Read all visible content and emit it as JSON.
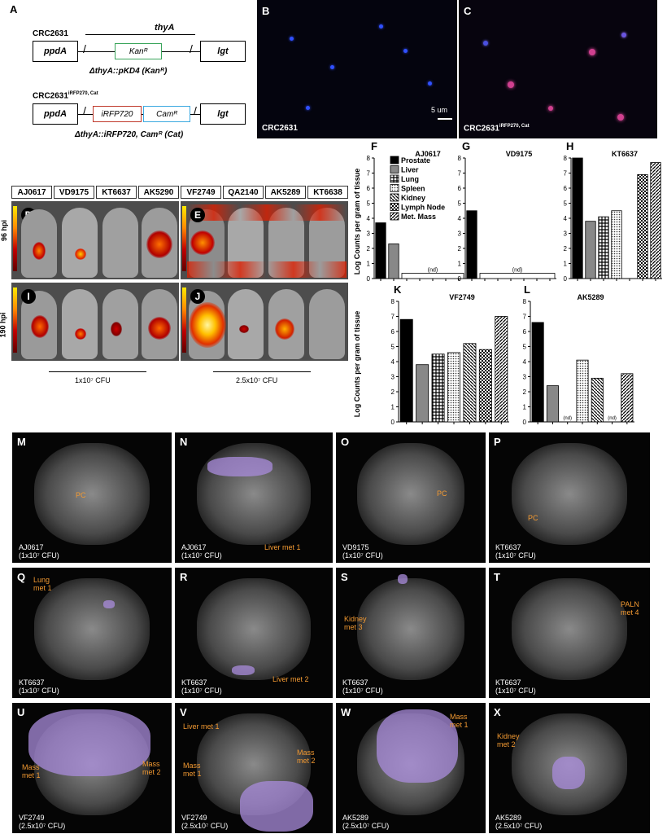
{
  "panelA": {
    "letter": "A",
    "strain1": "CRC2631",
    "thyA": "thyA",
    "ppdA": "ppdA",
    "lgt": "lgt",
    "kan": "Kanᴿ",
    "caption1": "ΔthyA::pKD4 (Kanᴿ)",
    "strain2": "CRC2631",
    "strain2_sup": "iRFP270, Cat",
    "irfp": "iRFP720",
    "cam": "Camᴿ",
    "caption2": "ΔthyA::iRFP720, Camᴿ (Cat)"
  },
  "panelB": {
    "letter": "B",
    "caption": "CRC2631",
    "scale": "5 um"
  },
  "panelC": {
    "letter": "C",
    "caption": "CRC2631",
    "caption_sup": "iRFP270, Cat"
  },
  "imaging": {
    "strains_left": [
      "AJ0617",
      "VD9175",
      "KT6637",
      "AK5290"
    ],
    "strains_right": [
      "VF2749",
      "QA2140",
      "AK5289",
      "KT6638"
    ],
    "row1_label": "96 hpi",
    "row2_label": "190 hpi",
    "D": "D",
    "E": "E",
    "I": "I",
    "J": "J",
    "dose_left": "1x10⁷ CFU",
    "dose_right": "2.5x10⁷ CFU"
  },
  "ylabel": "Log Counts per gram of tissue",
  "nd": "(nd)",
  "legend": [
    "Prostate",
    "Liver",
    "Lung",
    "Spleen",
    "Kidney",
    "Lymph Node",
    "Met. Mass"
  ],
  "chart_data": [
    {
      "panel": "F",
      "title": "AJ0617",
      "type": "bar",
      "ylim": [
        0,
        8
      ],
      "categories": [
        "Prostate",
        "Liver",
        "Lung",
        "Spleen",
        "Kidney",
        "Lymph Node",
        "Met. Mass"
      ],
      "values": [
        3.7,
        2.3,
        null,
        null,
        null,
        null,
        null
      ],
      "nd_span": [
        2,
        6
      ]
    },
    {
      "panel": "G",
      "title": "VD9175",
      "type": "bar",
      "ylim": [
        0,
        8
      ],
      "categories": [
        "Prostate",
        "Liver",
        "Lung",
        "Spleen",
        "Kidney",
        "Lymph Node",
        "Met. Mass"
      ],
      "values": [
        4.5,
        null,
        null,
        null,
        null,
        null,
        null
      ],
      "nd_span": [
        1,
        6
      ]
    },
    {
      "panel": "H",
      "title": "KT6637",
      "type": "bar",
      "ylim": [
        0,
        8
      ],
      "categories": [
        "Prostate",
        "Liver",
        "Lung",
        "Spleen",
        "Kidney",
        "Lymph Node",
        "Met. Mass"
      ],
      "values": [
        8.0,
        3.8,
        4.1,
        4.5,
        null,
        6.9,
        7.7
      ]
    },
    {
      "panel": "K",
      "title": "VF2749",
      "type": "bar",
      "ylim": [
        0,
        8
      ],
      "categories": [
        "Prostate",
        "Liver",
        "Lung",
        "Spleen",
        "Kidney",
        "Lymph Node",
        "Met. Mass"
      ],
      "values": [
        6.8,
        3.8,
        4.5,
        4.6,
        5.2,
        4.8,
        7.0
      ]
    },
    {
      "panel": "L",
      "title": "AK5289",
      "type": "bar",
      "ylim": [
        0,
        8
      ],
      "categories": [
        "Prostate",
        "Liver",
        "Lung",
        "Spleen",
        "Kidney",
        "Lymph Node",
        "Met. Mass"
      ],
      "values": [
        6.6,
        2.4,
        null,
        4.1,
        2.9,
        null,
        3.2
      ],
      "nd_at": [
        2,
        5
      ]
    }
  ],
  "mri": [
    {
      "letter": "M",
      "caption": "AJ0617",
      "dose": "(1x10⁷ CFU)",
      "notes": [
        "PC"
      ]
    },
    {
      "letter": "N",
      "caption": "AJ0617",
      "dose": "(1x10⁷ CFU)",
      "notes": [
        "Liver met 1"
      ]
    },
    {
      "letter": "O",
      "caption": "VD9175",
      "dose": "(1x10⁷ CFU)",
      "notes": [
        "PC"
      ]
    },
    {
      "letter": "P",
      "caption": "KT6637",
      "dose": "(1x10⁷ CFU)",
      "notes": [
        "PC"
      ]
    },
    {
      "letter": "Q",
      "caption": "KT6637",
      "dose": "(1x10⁷ CFU)",
      "notes": [
        "Lung",
        "met 1"
      ]
    },
    {
      "letter": "R",
      "caption": "KT6637",
      "dose": "(1x10⁷ CFU)",
      "notes": [
        "Liver met 2"
      ]
    },
    {
      "letter": "S",
      "caption": "KT6637",
      "dose": "(1x10⁷ CFU)",
      "notes": [
        "Kidney",
        "met 3"
      ]
    },
    {
      "letter": "T",
      "caption": "KT6637",
      "dose": "(1x10⁷ CFU)",
      "notes": [
        "PALN",
        "met 4"
      ]
    },
    {
      "letter": "U",
      "caption": "VF2749",
      "dose": "(2.5x10⁷ CFU)",
      "notes": [
        "Mass",
        "met 1",
        "Mass",
        "met 2"
      ]
    },
    {
      "letter": "V",
      "caption": "VF2749",
      "dose": "(2.5x10⁷ CFU)",
      "notes": [
        "Liver met 1",
        "Mass",
        "met 1",
        "Mass",
        "met 2"
      ]
    },
    {
      "letter": "W",
      "caption": "AK5289",
      "dose": "(2.5x10⁷ CFU)",
      "notes": [
        "Mass",
        "met 1"
      ]
    },
    {
      "letter": "X",
      "caption": "AK5289",
      "dose": "(2.5x10⁷ CFU)",
      "notes": [
        "Kidney",
        "met 2"
      ]
    }
  ]
}
